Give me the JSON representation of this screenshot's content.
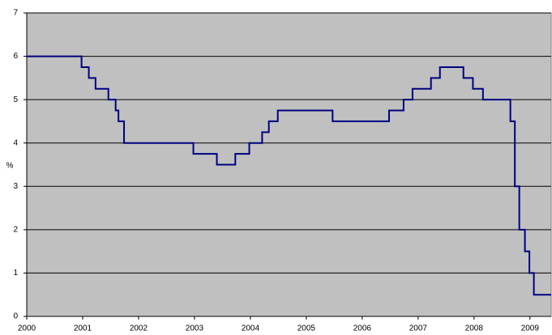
{
  "chart_data": {
    "type": "step",
    "y_label": "%",
    "x": [
      2000,
      2000.98,
      2001.11,
      2001.23,
      2001.46,
      2001.59,
      2001.64,
      2001.74,
      2002.98,
      2003.4,
      2003.73,
      2003.98,
      2004.21,
      2004.33,
      2004.49,
      2005.47,
      2006.48,
      2006.74,
      2006.9,
      2007.23,
      2007.39,
      2007.81,
      2007.98,
      2008.16,
      2008.65,
      2008.73,
      2008.81,
      2008.91,
      2008.99,
      2009.07,
      2009.38
    ],
    "series": [
      {
        "color": "#000080",
        "values": [
          6,
          5.75,
          5.5,
          5.25,
          5,
          4.75,
          4.5,
          4,
          3.75,
          3.5,
          3.75,
          4,
          4.25,
          4.5,
          4.75,
          4.5,
          4.75,
          5,
          5.25,
          5.5,
          5.75,
          5.5,
          5.25,
          5,
          4.5,
          3,
          2,
          1.5,
          1,
          0.5,
          0.5
        ]
      }
    ],
    "xlim": [
      2000,
      2009.38
    ],
    "xticks": [
      2000,
      2001,
      2002,
      2003,
      2004,
      2005,
      2006,
      2007,
      2008,
      2009
    ],
    "ylim": [
      0,
      7
    ],
    "yticks": [
      0,
      1,
      2,
      3,
      4,
      5,
      6,
      7
    ],
    "grid": true,
    "background": "#c0c0c0"
  }
}
